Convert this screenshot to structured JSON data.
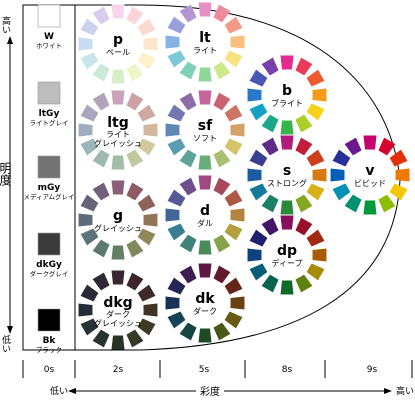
{
  "vertical_axis": {
    "title": "明度",
    "high": "高い",
    "low": "低い"
  },
  "horizontal_axis": {
    "title": "彩度",
    "low": "低い",
    "high": "高い"
  },
  "saturation_levels": [
    "0s",
    "2s",
    "5s",
    "8s",
    "9s"
  ],
  "grays": [
    {
      "code": "W",
      "name": "ホワイト",
      "color": "#ffffff"
    },
    {
      "code": "ltGy",
      "name": "ライトグレイ",
      "color": "#bdbdbd"
    },
    {
      "code": "mGy",
      "name": "メディアムグレイ",
      "color": "#737373"
    },
    {
      "code": "dkGy",
      "name": "ダークグレイ",
      "color": "#3a3a3a"
    },
    {
      "code": "Bk",
      "name": "ブラック",
      "color": "#000000"
    }
  ],
  "tones": [
    {
      "code": "p",
      "name": "ペール",
      "name2": "",
      "colors": [
        "#f7d6ea",
        "#fbd3d9",
        "#fbd9cf",
        "#fde6cc",
        "#fdf1c8",
        "#eef6c8",
        "#d4efc9",
        "#cbe9d9",
        "#c7e6ea",
        "#c6dcf1",
        "#ccd2ee",
        "#d9cdec"
      ]
    },
    {
      "code": "lt",
      "name": "ライト",
      "name2": "",
      "colors": [
        "#e58fc4",
        "#f08aa0",
        "#f39a86",
        "#f8bf7e",
        "#f8e27e",
        "#cde98a",
        "#8fd89a",
        "#7ed0b6",
        "#7cc8d8",
        "#86b2e4",
        "#9aa0dc",
        "#b495d6"
      ]
    },
    {
      "code": "b",
      "name": "ブライト",
      "name2": "",
      "colors": [
        "#e6288f",
        "#ea3a5a",
        "#ee5a2e",
        "#f59a1a",
        "#f6d31a",
        "#a9cf2a",
        "#37b44a",
        "#1ea88a",
        "#14a0c2",
        "#2a78c8",
        "#4a56b4",
        "#7a3eaa"
      ]
    },
    {
      "code": "v",
      "name": "ビビッド",
      "name2": "",
      "colors": [
        "#c8006e",
        "#d8002e",
        "#e4300a",
        "#f07a00",
        "#f5c800",
        "#8cbe00",
        "#009a3a",
        "#009070",
        "#0090b4",
        "#0060b8",
        "#2a2e9a",
        "#6a1a8e"
      ]
    },
    {
      "code": "s",
      "name": "ストロング",
      "name2": "",
      "colors": [
        "#b01a78",
        "#c21e3c",
        "#cc3e1c",
        "#d67a12",
        "#d8b214",
        "#84a820",
        "#2a8a3a",
        "#1a8066",
        "#147a9a",
        "#1e5a9e",
        "#3a3e8e",
        "#5e2a86"
      ]
    },
    {
      "code": "dp",
      "name": "ディープ",
      "name2": "",
      "colors": [
        "#8a0e5e",
        "#96122c",
        "#a02a10",
        "#a85c06",
        "#a88a06",
        "#5e8010",
        "#106a2a",
        "#0a644e",
        "#0a5e7a",
        "#0e427c",
        "#221e70",
        "#44146a"
      ]
    },
    {
      "code": "ltg",
      "name": "ライト",
      "name2": "グレイッシュ",
      "colors": [
        "#c9a3b8",
        "#cda1a6",
        "#cea89e",
        "#d2b79c",
        "#d1c89e",
        "#bec9a0",
        "#a2bda6",
        "#9db9ae",
        "#9bb5b9",
        "#9eaebf",
        "#a6a6bd",
        "#b2a3bb"
      ]
    },
    {
      "code": "sf",
      "name": "ソフト",
      "name2": "",
      "colors": [
        "#c4669c",
        "#ca6474",
        "#ce7464",
        "#d6a066",
        "#d6c468",
        "#a8c070",
        "#6aac78",
        "#5ea49a",
        "#5a9cb2",
        "#6088b4",
        "#7478b0",
        "#8e6ca8"
      ]
    },
    {
      "code": "g",
      "name": "グレイッシュ",
      "name2": "",
      "colors": [
        "#8a5e76",
        "#8c5c62",
        "#8e645a",
        "#927658",
        "#90885a",
        "#7e8a5e",
        "#627e64",
        "#5e7a6e",
        "#5c7478",
        "#5e6a7a",
        "#66647a",
        "#72607a"
      ]
    },
    {
      "code": "d",
      "name": "ダル",
      "name2": "",
      "colors": [
        "#9e4a80",
        "#a84a5a",
        "#ac5a46",
        "#b4843e",
        "#b2a040",
        "#86a24a",
        "#4a8a58",
        "#3e8478",
        "#3a7e94",
        "#40689a",
        "#545a94",
        "#6e4e8e"
      ]
    },
    {
      "code": "dkg",
      "name": "ダーク",
      "name2": "グレイッシュ",
      "colors": [
        "#3a2632",
        "#3c262a",
        "#3e2a26",
        "#403224",
        "#3e3a24",
        "#343a26",
        "#283428",
        "#26342e",
        "#263234",
        "#262c36",
        "#2a2a36",
        "#302834"
      ]
    },
    {
      "code": "dk",
      "name": "ダーク",
      "name2": "",
      "colors": [
        "#5a1a44",
        "#601a2c",
        "#642618",
        "#6a4212",
        "#685a12",
        "#485818",
        "#1e4a26",
        "#164640",
        "#164454",
        "#1a3258",
        "#262656",
        "#3e1e52"
      ]
    }
  ]
}
